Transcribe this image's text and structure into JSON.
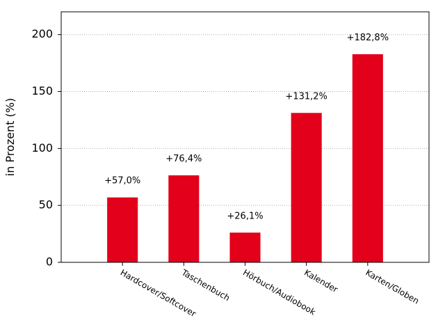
{
  "chart_data": {
    "type": "bar",
    "y_label": "in Prozent (%)",
    "categories": [
      "Hardcover/Softcover",
      "Taschenbuch",
      "Hörbuch/Audiobook",
      "Kalender",
      "Karten/Globen"
    ],
    "values": [
      57.0,
      76.4,
      26.1,
      131.2,
      182.8
    ],
    "value_labels": [
      "+57,0%",
      "+76,4%",
      "+26,1%",
      "+131,2%",
      "+182,8%"
    ],
    "color": "#e2001a",
    "ylim": [
      0,
      220
    ],
    "yticks": [
      0,
      50,
      100,
      150,
      200
    ],
    "grid": true
  }
}
